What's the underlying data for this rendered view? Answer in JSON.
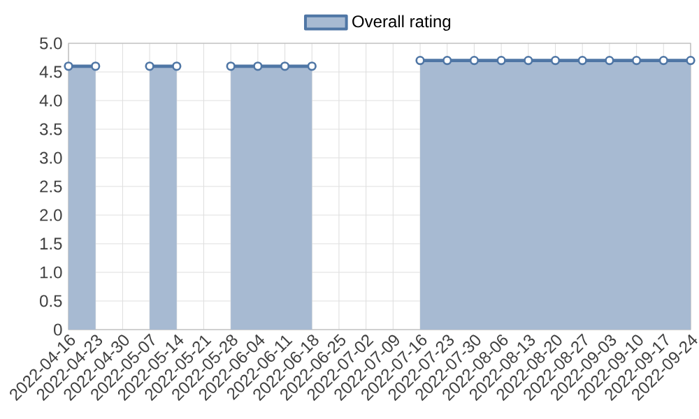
{
  "chart_data": {
    "type": "area",
    "categories": [
      "2022-04-16",
      "2022-04-23",
      "2022-04-30",
      "2022-05-07",
      "2022-05-14",
      "2022-05-21",
      "2022-05-28",
      "2022-06-04",
      "2022-06-11",
      "2022-06-18",
      "2022-06-25",
      "2022-07-02",
      "2022-07-09",
      "2022-07-16",
      "2022-07-23",
      "2022-07-30",
      "2022-08-06",
      "2022-08-13",
      "2022-08-20",
      "2022-08-27",
      "2022-09-03",
      "2022-09-10",
      "2022-09-17",
      "2022-09-24"
    ],
    "series": [
      {
        "name": "Overall rating",
        "color": "#4f76a5",
        "values": [
          4.6,
          4.6,
          null,
          4.6,
          4.6,
          null,
          4.6,
          4.6,
          4.6,
          4.6,
          null,
          null,
          null,
          4.7,
          4.7,
          4.7,
          4.7,
          4.7,
          4.7,
          4.7,
          4.7,
          4.7,
          4.7,
          4.7
        ]
      }
    ],
    "ylim": [
      0,
      5
    ],
    "yticks": [
      0,
      0.5,
      {
        "value": 1,
        "label": "1.0"
      },
      1.5,
      {
        "value": 2,
        "label": "2.0"
      },
      2.5,
      {
        "value": 3,
        "label": "3.0"
      },
      3.5,
      {
        "value": 4,
        "label": "4.0"
      },
      4.5,
      {
        "value": 5,
        "label": "5.0"
      }
    ],
    "grid": true,
    "legend": "top",
    "marker": "circle",
    "line_style": "solid"
  }
}
